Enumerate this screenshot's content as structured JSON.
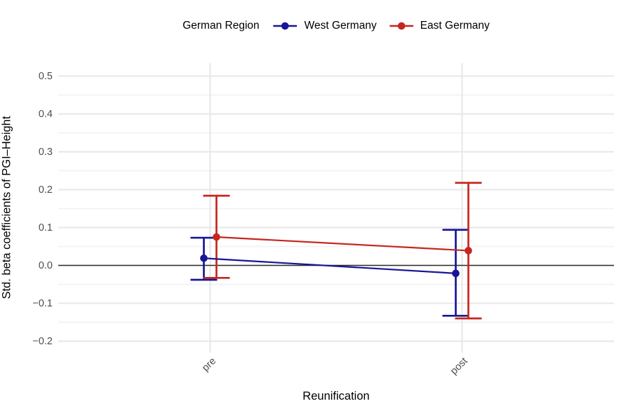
{
  "legend": {
    "title": "German Region",
    "items": [
      {
        "label": "West Germany",
        "color": "#181698"
      },
      {
        "label": "East Germany",
        "color": "#C4271F"
      }
    ]
  },
  "chart_data": {
    "type": "line",
    "variant": "dodged point estimates with error bars connected by lines",
    "title": "",
    "xlabel": "Reunification",
    "ylabel": "Std. beta coefficients of PGI–Height",
    "categories": [
      "pre",
      "post"
    ],
    "series": [
      {
        "name": "West Germany",
        "color": "#181698",
        "values": [
          0.019,
          -0.021
        ],
        "ci_low": [
          -0.038,
          -0.133
        ],
        "ci_high": [
          0.073,
          0.094
        ]
      },
      {
        "name": "East Germany",
        "color": "#C4271F",
        "values": [
          0.075,
          0.039
        ],
        "ci_low": [
          -0.033,
          -0.14
        ],
        "ci_high": [
          0.184,
          0.218
        ]
      }
    ],
    "ylim": [
      -0.23,
      0.535
    ],
    "yticks": [
      0.5,
      0.4,
      0.3,
      0.2,
      0.1,
      0.0,
      -0.1,
      -0.2
    ],
    "ytick_labels": [
      "0.5",
      "0.4",
      "0.3",
      "0.2",
      "0.1",
      "0.0",
      "−0.1",
      "−0.2"
    ],
    "reference_line": {
      "y": 0,
      "color": "#2B2B2B"
    },
    "grid": {
      "horizontal_major": true,
      "horizontal_minor": true,
      "vertical_at_categories": true,
      "major_color": "#E7E7E7",
      "minor_color": "#F2F2F2"
    },
    "legend_position": "top"
  }
}
